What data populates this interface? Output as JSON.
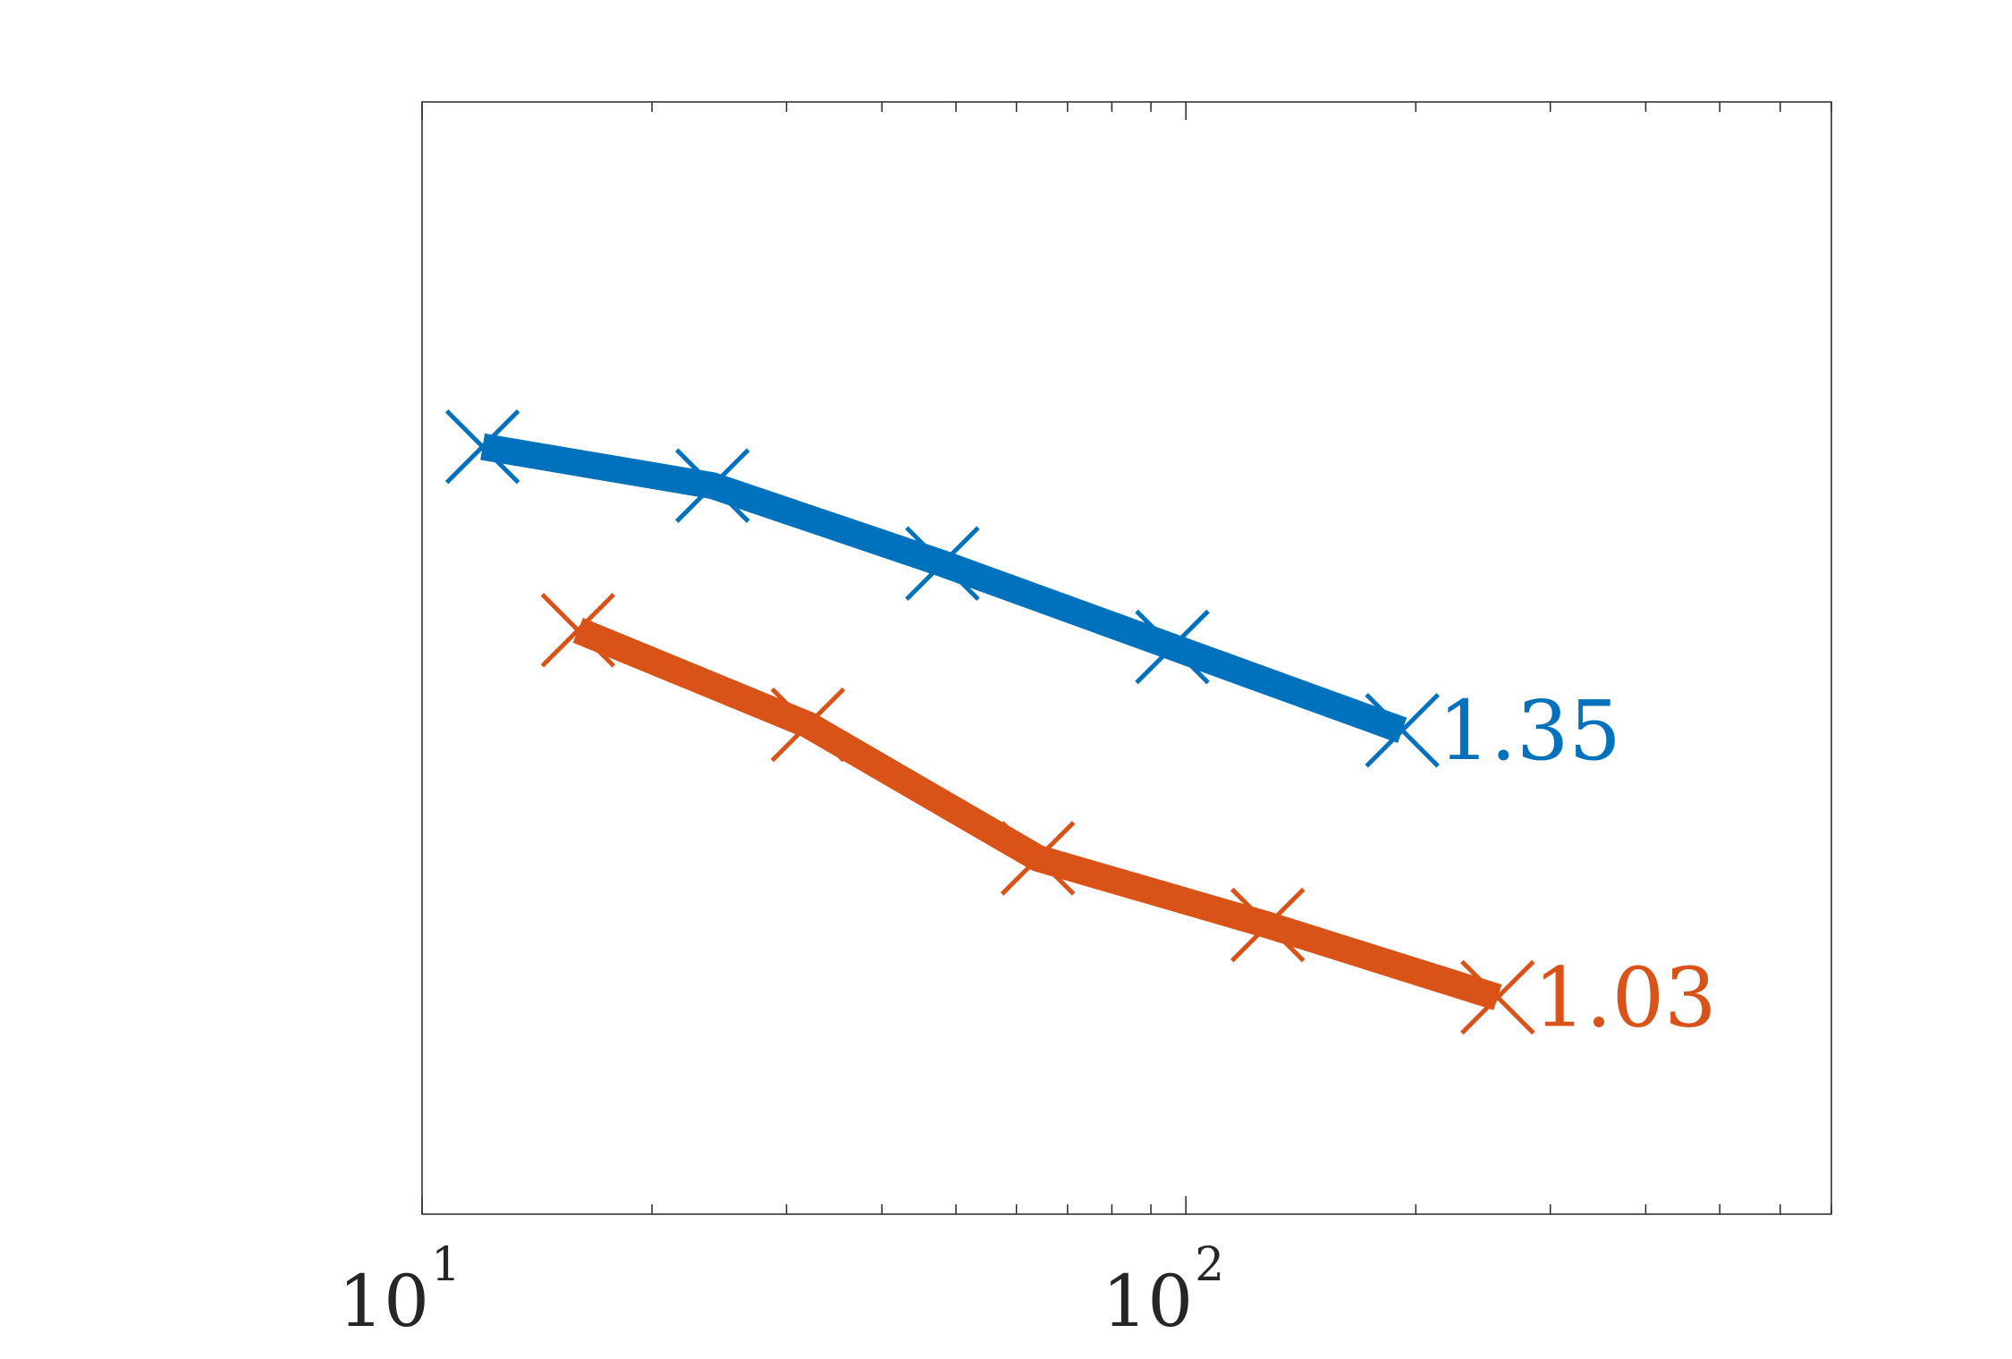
{
  "chart_data": {
    "type": "line",
    "title": "",
    "xlabel": "",
    "ylabel": "",
    "x_scale": "log",
    "xlim": [
      10,
      700
    ],
    "ylim": [
      0,
      1
    ],
    "grid": false,
    "y_tick_labels_shown": false,
    "x_ticks": [
      {
        "value": 10,
        "base": "10",
        "exp": "1"
      },
      {
        "value": 100,
        "base": "10",
        "exp": "2"
      }
    ],
    "series": [
      {
        "color": "#0072BD",
        "marker": "x",
        "x": [
          12,
          24,
          48,
          96,
          192
        ],
        "y": [
          0.69,
          0.655,
          0.585,
          0.51,
          0.435
        ],
        "end_label": "1.35"
      },
      {
        "color": "#D95319",
        "marker": "x",
        "x": [
          16,
          32,
          64,
          128,
          256
        ],
        "y": [
          0.525,
          0.44,
          0.32,
          0.26,
          0.195
        ],
        "end_label": "1.03"
      }
    ]
  }
}
